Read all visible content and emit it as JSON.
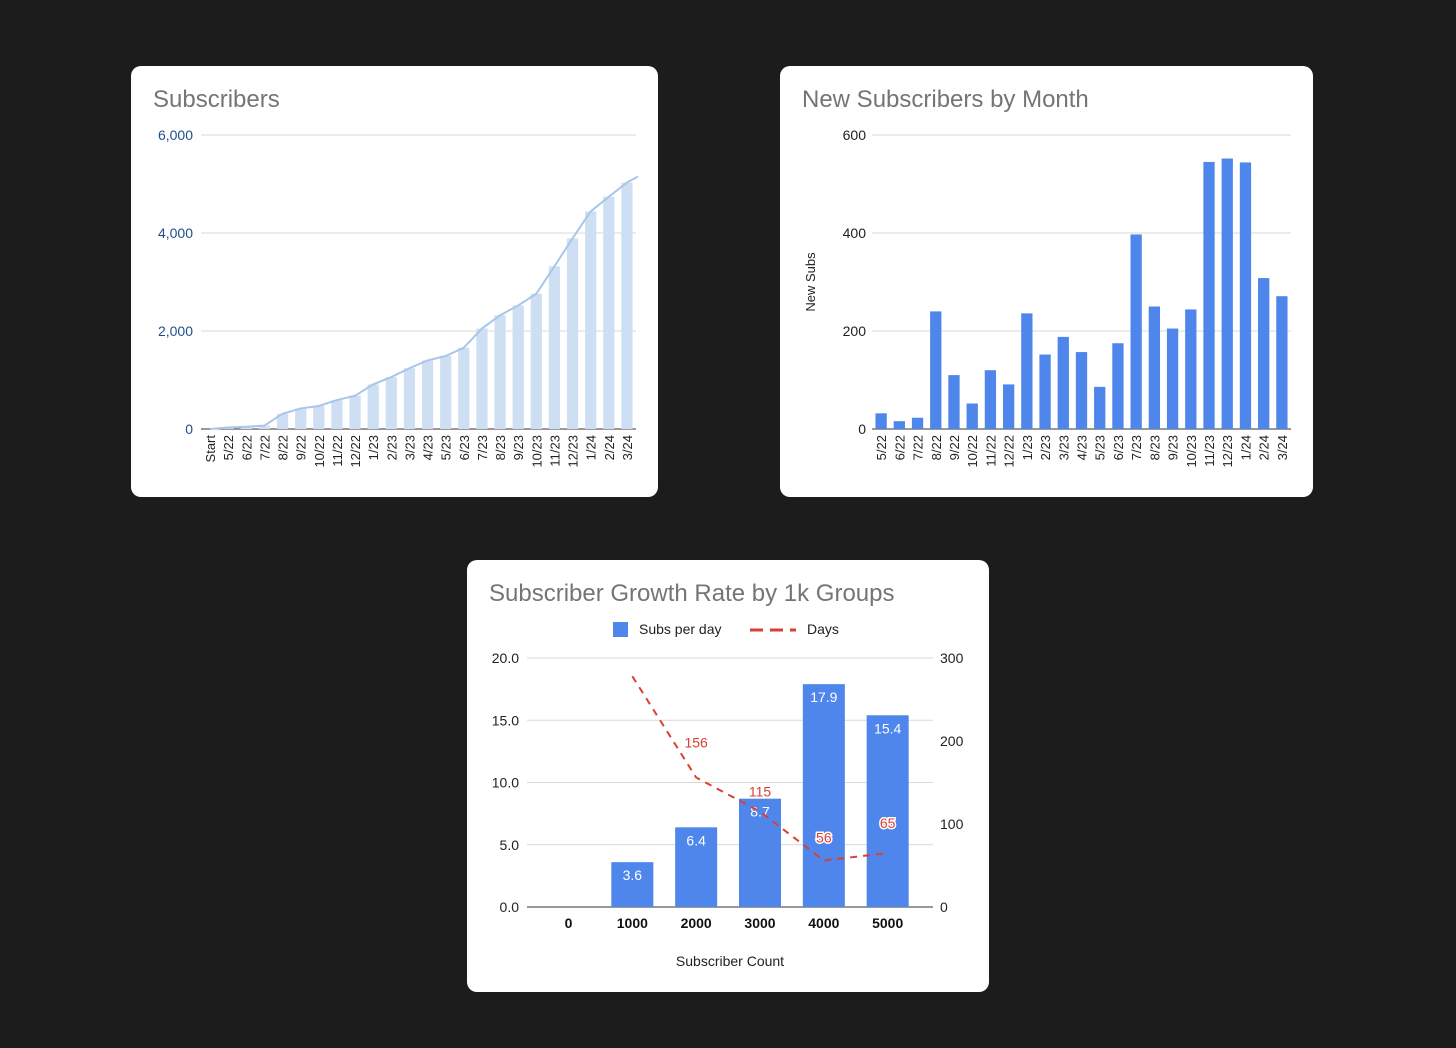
{
  "charts": [
    {
      "title": "Subscribers"
    },
    {
      "title": "New Subscribers by Month"
    },
    {
      "title": "Subscriber Growth Rate by 1k Groups"
    }
  ],
  "colors": {
    "background": "#1c1c1c",
    "card": "#ffffff",
    "light_bar": "#cfdff3",
    "light_line": "#a9c5ea",
    "blue": "#4f86ec",
    "red_dashed": "#dc3e33",
    "axis_text_blue": "#1f4e8c"
  },
  "chart_data": [
    {
      "type": "bar",
      "title": "Subscribers",
      "categories": [
        "Start",
        "5/22",
        "6/22",
        "7/22",
        "8/22",
        "9/22",
        "10/22",
        "11/22",
        "12/22",
        "1/23",
        "2/23",
        "3/23",
        "4/23",
        "5/23",
        "6/23",
        "7/23",
        "8/23",
        "9/23",
        "10/23",
        "11/23",
        "12/23",
        "1/24",
        "2/24",
        "3/24"
      ],
      "values": [
        0,
        30,
        45,
        70,
        310,
        420,
        470,
        590,
        680,
        910,
        1060,
        1240,
        1400,
        1490,
        1660,
        2050,
        2320,
        2520,
        2760,
        3320,
        3890,
        4440,
        4740,
        5030
      ],
      "overlay_line": true,
      "ylim": [
        0,
        6000
      ],
      "yticks": [
        "0",
        "2,000",
        "4,000",
        "6,000"
      ],
      "grid": true,
      "legend": "none"
    },
    {
      "type": "bar",
      "title": "New Subscribers by Month",
      "categories": [
        "5/22",
        "6/22",
        "7/22",
        "8/22",
        "9/22",
        "10/22",
        "11/22",
        "12/22",
        "1/23",
        "2/23",
        "3/23",
        "4/23",
        "5/23",
        "6/23",
        "7/23",
        "8/23",
        "9/23",
        "10/23",
        "11/23",
        "12/23",
        "1/24",
        "2/24",
        "3/24"
      ],
      "values": [
        32,
        16,
        23,
        240,
        110,
        52,
        120,
        91,
        236,
        152,
        188,
        157,
        86,
        175,
        397,
        250,
        205,
        244,
        545,
        552,
        544,
        308,
        271
      ],
      "ylabel": "New Subs",
      "ylim": [
        0,
        600
      ],
      "yticks": [
        "0",
        "200",
        "400",
        "600"
      ],
      "grid": true,
      "legend": "none"
    },
    {
      "type": "bar",
      "title": "Subscriber Growth Rate by 1k Groups",
      "xlabel": "Subscriber Count",
      "categories": [
        "0",
        "1000",
        "2000",
        "3000",
        "4000",
        "5000"
      ],
      "series": [
        {
          "name": "Subs per day",
          "type": "bar",
          "axis": "left",
          "values": [
            null,
            3.6,
            6.4,
            8.7,
            17.9,
            15.4
          ],
          "labels": [
            "",
            "3.6",
            "6.4",
            "8.7",
            "17.9",
            "15.4"
          ]
        },
        {
          "name": "Days",
          "type": "line",
          "style": "dashed",
          "axis": "right",
          "values": [
            null,
            278,
            156,
            115,
            56,
            65
          ],
          "labels": [
            "",
            "",
            "156",
            "115",
            "56",
            "65"
          ]
        }
      ],
      "ylim_left": [
        0,
        20
      ],
      "yticks_left": [
        "0.0",
        "5.0",
        "10.0",
        "15.0",
        "20.0"
      ],
      "ylim_right": [
        0,
        300
      ],
      "yticks_right": [
        "0",
        "100",
        "200",
        "300"
      ],
      "grid": true,
      "legend": "top"
    }
  ]
}
